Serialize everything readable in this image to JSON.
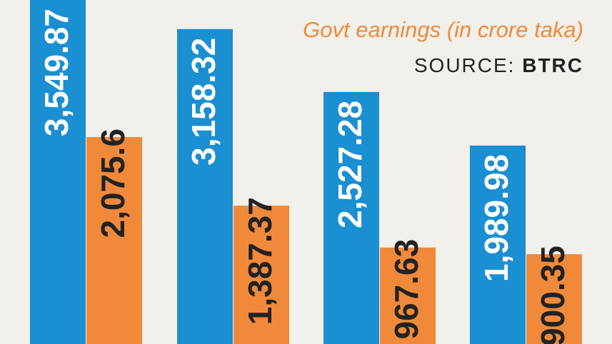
{
  "chart_data": {
    "type": "bar",
    "categories": [
      "",
      "",
      "",
      ""
    ],
    "series": [
      {
        "name": "",
        "color": "#1a8fd1",
        "values": [
          3549.87,
          3158.32,
          2527.28,
          1989.98
        ],
        "labels": [
          "3,549.87",
          "3,158.32",
          "2,527.28",
          "1,989.98"
        ]
      },
      {
        "name": "Govt earnings (in crore taka)",
        "color": "#f08a3a",
        "values": [
          2075.6,
          1387.37,
          967.63,
          900.35
        ],
        "labels": [
          "2,075.6",
          "1,387.37",
          "967.63",
          "900.35"
        ]
      }
    ],
    "ylim": [
      0,
      3450
    ],
    "source_label": "SOURCE:",
    "source_name": "BTRC",
    "grid": false
  }
}
